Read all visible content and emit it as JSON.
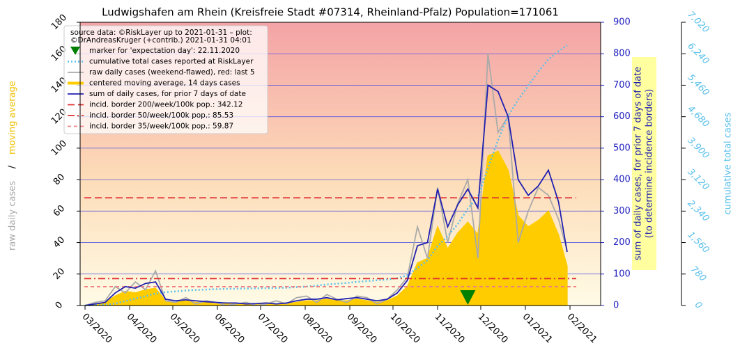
{
  "chart_data": {
    "type": "line",
    "title": "Ludwigshafen am Rhein (Kreisfreie Stadt #07314, Rheinland-Pfalz) Population=171061",
    "ylabel_parts": [
      "raw daily cases",
      "/",
      "moving average"
    ],
    "y2label": [
      "sum of daily cases, for prior 7 days of date",
      "(to determine incidence borders)"
    ],
    "y3label": "cumulative total cases",
    "source_lines": [
      "source data: ©RiskLayer up to 2021-01-31 – plot:",
      "©DrAndreasKruger (+contrib.) 2021-01-31 04:01"
    ],
    "xlim": [
      -3.4,
      358.3
    ],
    "xticks": [
      {
        "value": 0,
        "label": "03/2020"
      },
      {
        "value": 31,
        "label": "04/2020"
      },
      {
        "value": 61,
        "label": "05/2020"
      },
      {
        "value": 92,
        "label": "06/2020"
      },
      {
        "value": 122,
        "label": "07/2020"
      },
      {
        "value": 153,
        "label": "08/2020"
      },
      {
        "value": 184,
        "label": "09/2020"
      },
      {
        "value": 214,
        "label": "10/2020"
      },
      {
        "value": 245,
        "label": "11/2020"
      },
      {
        "value": 275,
        "label": "12/2020"
      },
      {
        "value": 306,
        "label": "01/2021"
      },
      {
        "value": 337,
        "label": "02/2021"
      }
    ],
    "ylim": [
      0,
      180
    ],
    "yticks": [
      0,
      20,
      40,
      60,
      80,
      100,
      120,
      140,
      160,
      180
    ],
    "y2lim": [
      0,
      900
    ],
    "y2ticks": [
      0,
      100,
      200,
      300,
      400,
      500,
      600,
      700,
      800,
      900
    ],
    "y3lim": [
      0,
      7020
    ],
    "y3ticks": [
      0,
      780,
      {
        "value": 1560,
        "label": "1,560"
      },
      {
        "value": 2340,
        "label": "2,340"
      },
      {
        "value": 3120,
        "label": "3,120"
      },
      {
        "value": 3900,
        "label": "3,900"
      },
      {
        "value": 4680,
        "label": "4,680"
      },
      {
        "value": 5460,
        "label": "5,460"
      },
      {
        "value": 6240,
        "label": "6,240"
      },
      {
        "value": 7020,
        "label": "7,020"
      }
    ],
    "grid": true,
    "marker": {
      "name": "marker for 'expectation day': 22.11.2020",
      "x": 266,
      "color": "#008000"
    },
    "x": [
      0,
      7,
      14,
      21,
      28,
      35,
      42,
      49,
      56,
      63,
      70,
      77,
      84,
      91,
      98,
      105,
      112,
      119,
      126,
      133,
      140,
      147,
      154,
      161,
      168,
      175,
      182,
      189,
      196,
      203,
      210,
      217,
      224,
      231,
      238,
      245,
      252,
      259,
      266,
      273,
      280,
      287,
      294,
      301,
      308,
      315,
      322,
      329,
      335
    ],
    "series": [
      {
        "name": "cumulative total cases reported at RiskLayer",
        "color": "#5bc0eb",
        "style": "dotted",
        "axis": "y3",
        "values": [
          0,
          5,
          15,
          50,
          110,
          170,
          230,
          300,
          330,
          350,
          370,
          385,
          395,
          405,
          412,
          418,
          422,
          426,
          432,
          436,
          440,
          455,
          470,
          495,
          520,
          540,
          560,
          585,
          605,
          625,
          645,
          680,
          750,
          930,
          1120,
          1470,
          1720,
          2020,
          2400,
          2700,
          3400,
          4100,
          4700,
          5100,
          5450,
          5800,
          6100,
          6300,
          6450
        ]
      },
      {
        "name": "raw daily cases (weekend-flawed), red: last 5",
        "color": "#aaaaaa",
        "style": "line",
        "axis": "y",
        "values": [
          0,
          2,
          3,
          12,
          8,
          15,
          10,
          22,
          3,
          2,
          5,
          1,
          3,
          2,
          0,
          1,
          2,
          0,
          1,
          3,
          1,
          5,
          6,
          2,
          7,
          4,
          2,
          6,
          5,
          1,
          4,
          10,
          18,
          50,
          30,
          75,
          40,
          65,
          80,
          30,
          160,
          110,
          120,
          40,
          60,
          75,
          70,
          55,
          35
        ]
      },
      {
        "name": "centered moving average, 14 days cases",
        "color": "#ffcc00",
        "style": "area",
        "axis": "y",
        "values": [
          0,
          1,
          2,
          6,
          9,
          8,
          10,
          11,
          3,
          2,
          3,
          2,
          2,
          1,
          1,
          1,
          1,
          1,
          1,
          1,
          1,
          2,
          3,
          3,
          4,
          3,
          3,
          4,
          3,
          2,
          3,
          6,
          12,
          27,
          30,
          50,
          36,
          46,
          53,
          45,
          95,
          98,
          86,
          57,
          50,
          54,
          60,
          45,
          25
        ]
      },
      {
        "name": "sum of daily cases, for prior 7 days of date",
        "color": "#2020b0",
        "style": "line",
        "axis": "y2",
        "values": [
          0,
          5,
          10,
          40,
          60,
          55,
          70,
          75,
          20,
          15,
          18,
          15,
          12,
          10,
          8,
          8,
          5,
          6,
          8,
          5,
          8,
          15,
          20,
          20,
          25,
          18,
          22,
          25,
          20,
          15,
          20,
          40,
          80,
          190,
          200,
          370,
          250,
          320,
          370,
          310,
          700,
          680,
          600,
          400,
          350,
          380,
          430,
          330,
          170
        ]
      }
    ],
    "hlines": [
      {
        "name": "incid. border 200/week/100k pop.: 342.12",
        "value": 342.12,
        "color": "#e03030",
        "dash": "10,5"
      },
      {
        "name": "incid. border 50/week/100k pop.: 85.53",
        "value": 85.53,
        "color": "#e03030",
        "dash": "10,4,2,4"
      },
      {
        "name": "incid. border 35/week/100k pop.: 59.87",
        "value": 59.87,
        "color": "#f08080",
        "dash": "5,4"
      }
    ]
  }
}
